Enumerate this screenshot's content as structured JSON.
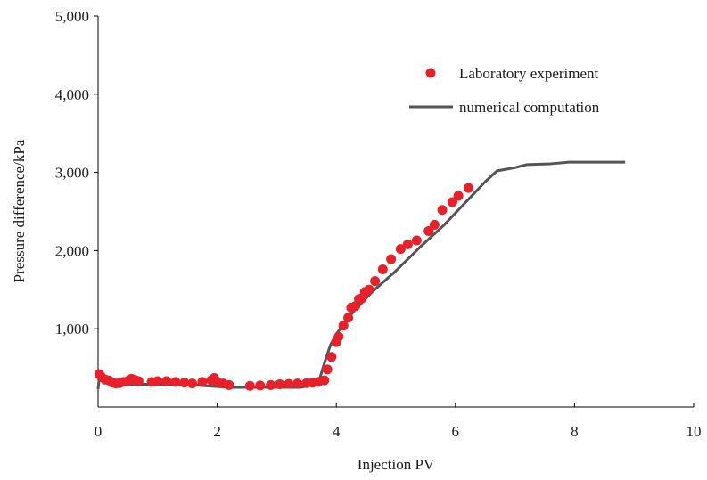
{
  "chart_data": {
    "type": "scatter",
    "title": "",
    "xlabel": "Injection PV",
    "ylabel": "Pressure difference/kPa",
    "xlim": [
      0,
      10
    ],
    "ylim": [
      0,
      5000
    ],
    "x_ticks": [
      0,
      2,
      4,
      6,
      8,
      10
    ],
    "x_tick_labels": [
      "0",
      "2",
      "4",
      "6",
      "8",
      "10"
    ],
    "y_ticks": [
      1000,
      2000,
      3000,
      4000,
      5000
    ],
    "y_tick_labels": [
      "1,000",
      "2,000",
      "3,000",
      "4,000",
      "5,000"
    ],
    "grid": false,
    "legend_position": "top-right",
    "colors": {
      "experiment": "#e8202a",
      "computation": "#555555",
      "axis": "#000000"
    },
    "series": [
      {
        "name": "Laboratory experiment",
        "kind": "scatter",
        "x": [
          0.02,
          0.06,
          0.12,
          0.18,
          0.24,
          0.3,
          0.36,
          0.42,
          0.5,
          0.56,
          0.62,
          0.68,
          0.9,
          1.0,
          1.15,
          1.3,
          1.45,
          1.58,
          1.75,
          1.9,
          1.95,
          2.0,
          2.1,
          2.2,
          2.55,
          2.72,
          2.9,
          3.05,
          3.2,
          3.35,
          3.5,
          3.6,
          3.7,
          3.8,
          3.85,
          3.92,
          4.0,
          4.04,
          4.12,
          4.2,
          4.25,
          4.32,
          4.38,
          4.43,
          4.48,
          4.55,
          4.65,
          4.78,
          4.92,
          5.08,
          5.2,
          5.35,
          5.55,
          5.65,
          5.78,
          5.95,
          6.05,
          6.22
        ],
        "y": [
          420,
          380,
          350,
          340,
          310,
          300,
          305,
          320,
          330,
          360,
          345,
          330,
          320,
          330,
          330,
          320,
          310,
          300,
          320,
          340,
          370,
          320,
          300,
          280,
          270,
          275,
          280,
          290,
          295,
          300,
          305,
          310,
          320,
          340,
          480,
          640,
          830,
          900,
          1040,
          1140,
          1270,
          1290,
          1380,
          1390,
          1470,
          1500,
          1610,
          1760,
          1890,
          2020,
          2080,
          2130,
          2250,
          2330,
          2520,
          2620,
          2700,
          2800
        ]
      },
      {
        "name": "numerical computation",
        "kind": "line",
        "x": [
          0.0,
          0.02,
          0.1,
          0.3,
          0.6,
          1.0,
          1.5,
          1.8,
          2.2,
          2.8,
          3.4,
          3.6,
          3.72,
          3.8,
          3.9,
          4.0,
          4.1,
          4.3,
          4.6,
          5.0,
          5.4,
          5.8,
          6.2,
          6.5,
          6.7,
          6.85,
          7.0,
          7.2,
          7.6,
          7.9,
          8.3,
          8.85
        ],
        "y": [
          230,
          380,
          320,
          290,
          290,
          290,
          290,
          270,
          250,
          250,
          250,
          280,
          360,
          560,
          790,
          930,
          1040,
          1230,
          1470,
          1740,
          2040,
          2320,
          2640,
          2880,
          3020,
          3040,
          3060,
          3100,
          3110,
          3130,
          3130,
          3130
        ]
      }
    ]
  }
}
